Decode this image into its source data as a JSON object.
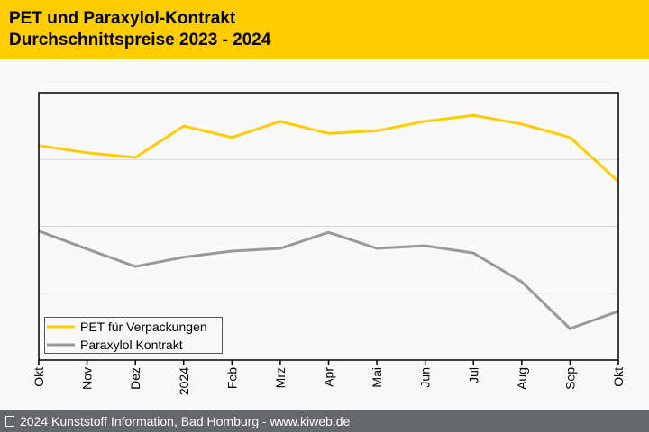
{
  "header": {
    "title_line1": "PET und Paraxylol-Kontrakt",
    "title_line2": "Durchschnittspreise 2023 - 2024"
  },
  "footer": {
    "text": "2024 Kunststoff Information, Bad Homburg - www.kiweb.de"
  },
  "colors": {
    "header_bg": "#ffcc00",
    "pet_line": "#ffcc00",
    "paraxylol_line": "#999999",
    "footer_bg": "#66676b"
  },
  "chart_data": {
    "type": "line",
    "title": "PET und Paraxylol-Kontrakt Durchschnittspreise 2023 - 2024",
    "xlabel": "",
    "ylabel": "",
    "categories": [
      "Okt",
      "Nov",
      "Dez",
      "2024",
      "Feb",
      "Mrz",
      "Apr",
      "Mai",
      "Jun",
      "Jul",
      "Aug",
      "Sep",
      "Okt"
    ],
    "ylim": [
      0,
      4
    ],
    "y_gridlines": [
      1,
      2,
      3
    ],
    "y_tick_labels_shown": false,
    "grid": true,
    "legend_position": "bottom-left",
    "series": [
      {
        "name": "PET für Verpackungen",
        "color": "#ffcc00",
        "values": [
          3.21,
          3.1,
          3.03,
          3.5,
          3.33,
          3.57,
          3.39,
          3.43,
          3.57,
          3.66,
          3.53,
          3.33,
          2.67
        ]
      },
      {
        "name": "Paraxylol Kontrakt",
        "color": "#999999",
        "values": [
          1.93,
          1.66,
          1.4,
          1.54,
          1.63,
          1.67,
          1.91,
          1.67,
          1.71,
          1.6,
          1.17,
          0.47,
          0.73
        ]
      }
    ]
  }
}
